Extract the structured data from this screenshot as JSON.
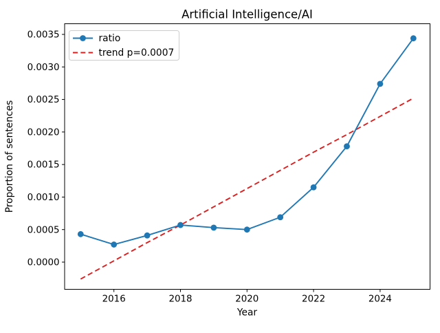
{
  "figure": {
    "background": "#ffffff"
  },
  "chart_data": {
    "type": "line",
    "title": "Artificial Intelligence/AI",
    "xlabel": "Year",
    "ylabel": "Proportion of sentences",
    "x": [
      2015,
      2016,
      2017,
      2018,
      2019,
      2020,
      2021,
      2022,
      2023,
      2024,
      2025
    ],
    "series": [
      {
        "name": "ratio",
        "color": "#1f77b4",
        "style": "solid-with-circle-markers",
        "values": [
          0.00043,
          0.00027,
          0.00041,
          0.00057,
          0.00053,
          0.0005,
          0.00069,
          0.00115,
          0.00178,
          0.00274,
          0.00344
        ]
      },
      {
        "name": "trend p=0.0007",
        "color": "#dc1e1e",
        "style": "dashed",
        "values": [
          -0.00026,
          2e-05,
          0.0003,
          0.00057,
          0.00085,
          0.00113,
          0.00141,
          0.00169,
          0.00196,
          0.00224,
          0.00252
        ]
      }
    ],
    "x_ticks": {
      "values": [
        2016,
        2018,
        2020,
        2022,
        2024
      ],
      "labels": [
        "2016",
        "2018",
        "2020",
        "2022",
        "2024"
      ]
    },
    "y_ticks": {
      "values": [
        0.0,
        0.0005,
        0.001,
        0.0015,
        0.002,
        0.0025,
        0.003,
        0.0035
      ],
      "labels": [
        "0.0000",
        "0.0005",
        "0.0010",
        "0.0015",
        "0.0020",
        "0.0025",
        "0.0030",
        "0.0035"
      ]
    },
    "xlim": [
      2014.519,
      2025.5
    ],
    "ylim": [
      -0.000418,
      0.003664
    ],
    "grid": false,
    "legend_position": "upper left"
  }
}
